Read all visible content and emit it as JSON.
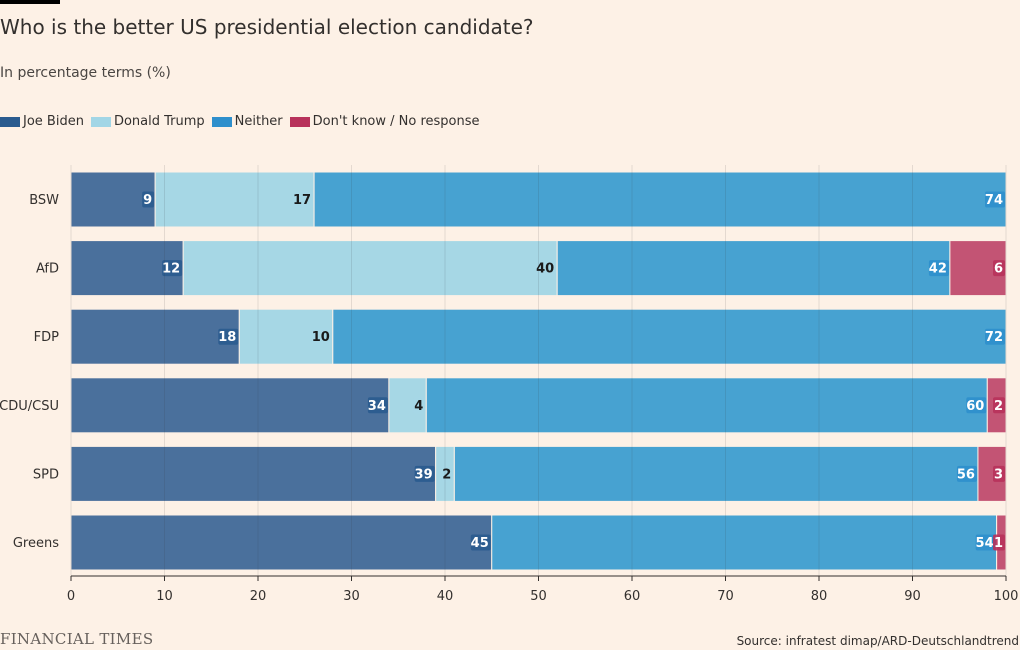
{
  "header": {
    "title": "Who is the better US presidential election candidate?",
    "subtitle": "In percentage terms (%)"
  },
  "legend": [
    {
      "label": "Joe Biden",
      "color": "#2a5b8f"
    },
    {
      "label": "Donald Trump",
      "color": "#a2d6e6"
    },
    {
      "label": "Neither",
      "color": "#2e8fcc"
    },
    {
      "label": "Don't know / No response",
      "color": "#b8325b"
    }
  ],
  "chart_data": {
    "type": "bar",
    "orientation": "horizontal",
    "stacked": true,
    "categories": [
      "BSW",
      "AfD",
      "FDP",
      "CDU/CSU",
      "SPD",
      "Greens"
    ],
    "series": [
      {
        "name": "Joe Biden",
        "values": [
          9,
          12,
          18,
          34,
          39,
          45
        ],
        "color": "#4a709c",
        "label_bg": "#2a5b8f",
        "label_color": "#ffffff"
      },
      {
        "name": "Donald Trump",
        "values": [
          17,
          40,
          10,
          4,
          2,
          0
        ],
        "color": "#a6d7e5",
        "label_bg": "#a6d7e5",
        "label_color": "#1a1a1a"
      },
      {
        "name": "Neither",
        "values": [
          74,
          42,
          72,
          60,
          56,
          54
        ],
        "color": "#47a2d1",
        "label_bg": "#2e8fcc",
        "label_color": "#ffffff"
      },
      {
        "name": "Don't know / No response",
        "values": [
          0,
          6,
          0,
          2,
          3,
          1
        ],
        "color": "#c35474",
        "label_bg": "#b8325b",
        "label_color": "#ffffff"
      }
    ],
    "x_ticks": [
      0,
      10,
      20,
      30,
      40,
      50,
      60,
      70,
      80,
      90,
      100
    ],
    "xlim": [
      0,
      100
    ],
    "grid": true,
    "legend_position": "top-left"
  },
  "footer": {
    "logo": "FINANCIAL TIMES",
    "source": "Source: infratest dimap/ARD-Deutschlandtrend"
  }
}
